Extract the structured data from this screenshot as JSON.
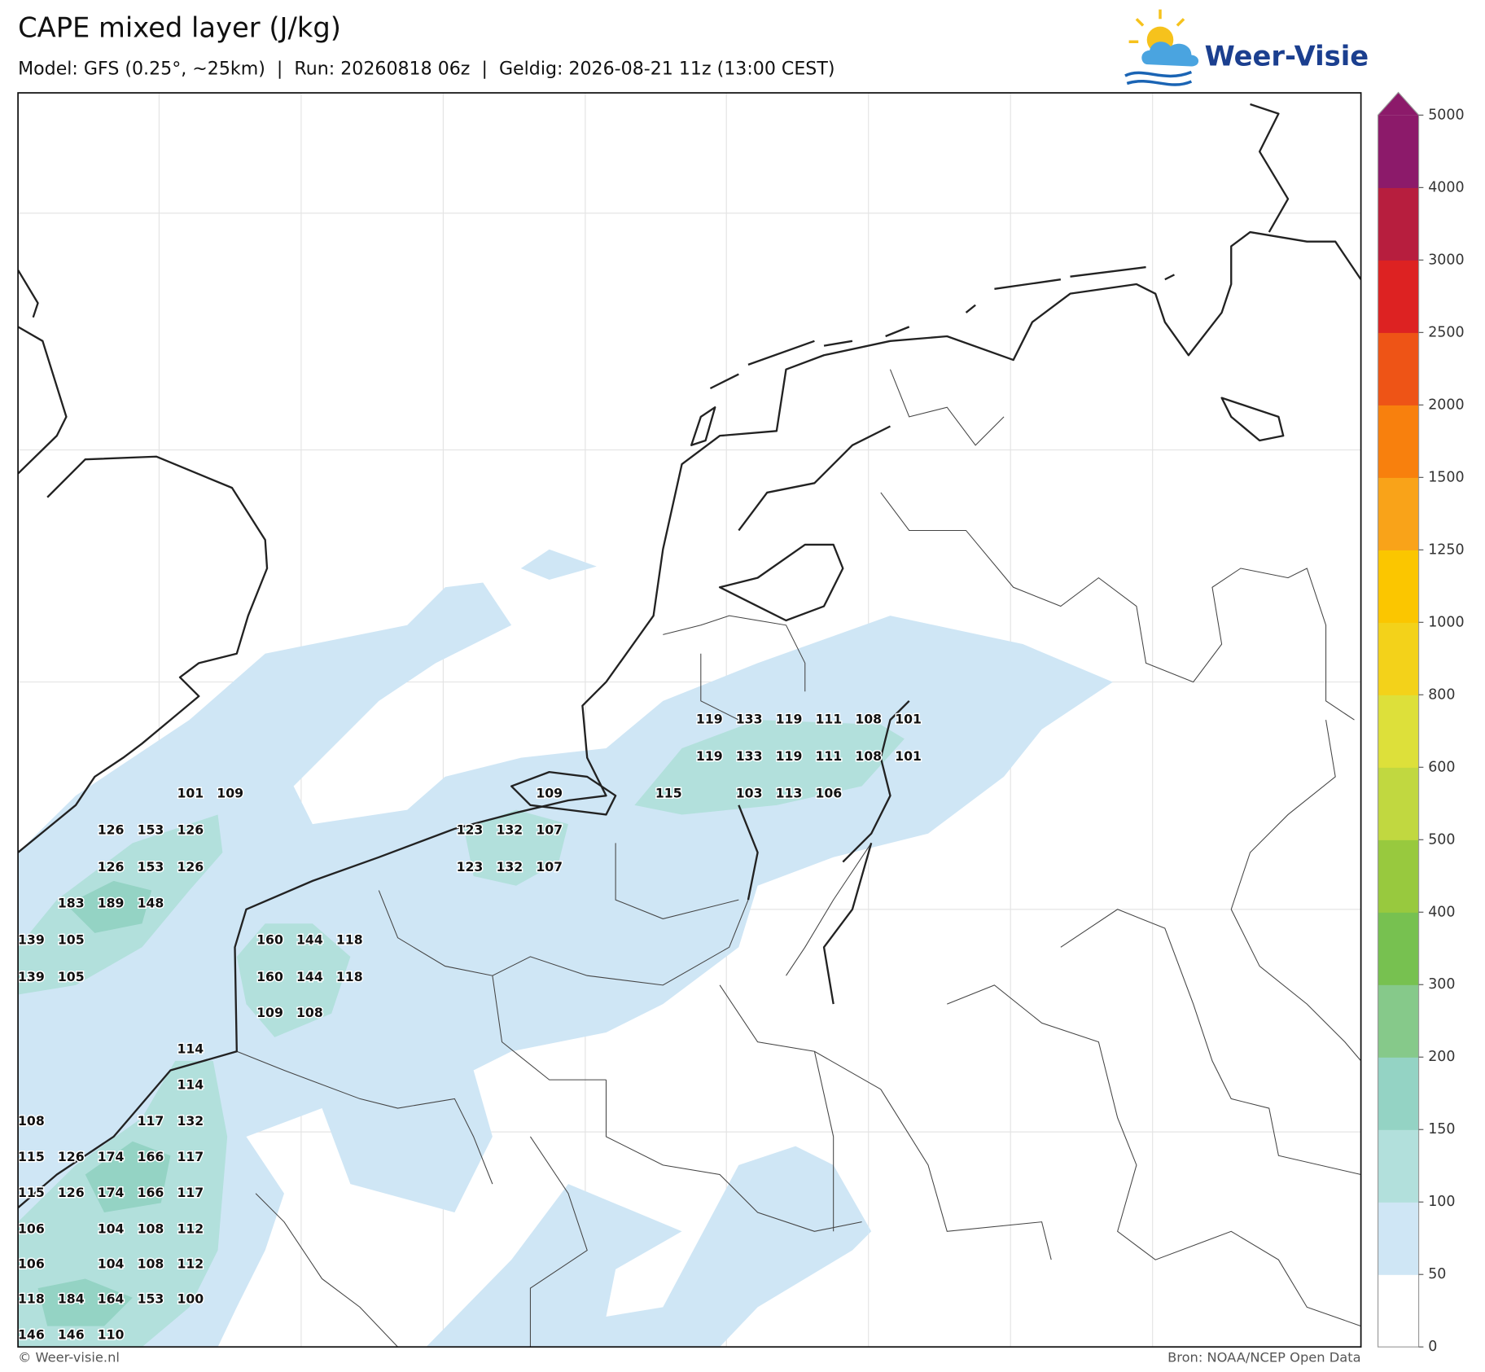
{
  "header": {
    "title": "CAPE mixed layer (J/kg)",
    "subtitle": "Model: GFS (0.25°, ~25km)  |  Run: 20260818 06z  |  Geldig: 2026-08-21 11z (13:00 CEST)",
    "logo": "Weer-Visie"
  },
  "map": {
    "values": [
      119,
      133,
      119,
      111,
      108,
      101,
      119,
      133,
      119,
      111,
      108,
      101,
      101,
      109,
      109,
      115,
      103,
      113,
      106,
      126,
      153,
      126,
      123,
      132,
      107,
      126,
      153,
      126,
      123,
      132,
      107,
      183,
      189,
      148,
      139,
      105,
      160,
      144,
      118,
      139,
      105,
      160,
      144,
      118,
      109,
      108,
      114,
      114,
      108,
      117,
      132,
      115,
      126,
      174,
      166,
      117,
      115,
      126,
      174,
      166,
      117,
      106,
      104,
      108,
      112,
      106,
      104,
      108,
      112,
      118,
      184,
      164,
      153,
      100,
      146,
      146,
      110
    ]
  },
  "colorbar": {
    "ticks": [
      0,
      50,
      100,
      150,
      200,
      300,
      400,
      500,
      600,
      800,
      1000,
      1250,
      1500,
      2000,
      2500,
      3000,
      4000,
      5000
    ],
    "colors": [
      "#ffffff",
      "#cfe6f5",
      "#b2e0dc",
      "#94d3c4",
      "#86c98a",
      "#77c150",
      "#98c93e",
      "#c1d840",
      "#dde03a",
      "#f3d21a",
      "#fbc600",
      "#f9a319",
      "#f8800d",
      "#ee5416",
      "#dd2222",
      "#b71e3e",
      "#8c1a6a"
    ]
  },
  "footer": {
    "left": "© Weer-visie.nl",
    "right": "Bron: NOAA/NCEP Open Data"
  }
}
